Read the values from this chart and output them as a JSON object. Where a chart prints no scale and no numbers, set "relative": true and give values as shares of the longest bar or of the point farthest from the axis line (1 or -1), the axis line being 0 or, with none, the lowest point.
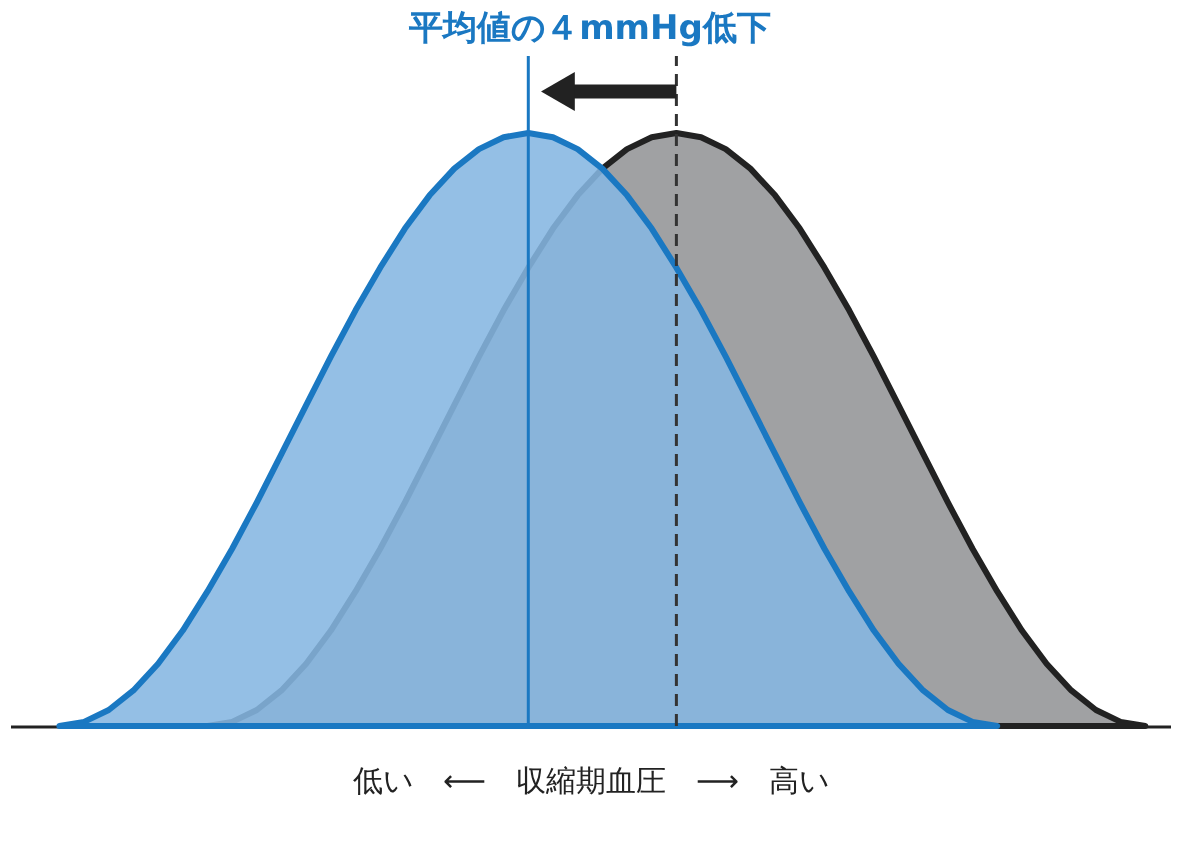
{
  "chart_data": {
    "type": "area",
    "relative": true,
    "title": "平均値の４mmHg低下",
    "xlabel": "低い　⟵　収縮期血圧　⟶　高い",
    "grid": false,
    "categories": [
      null,
      null,
      null,
      null,
      null,
      null,
      null,
      null,
      null,
      null,
      null,
      null,
      null,
      null,
      null,
      null,
      null,
      null,
      null,
      null,
      null,
      null,
      null,
      null,
      null,
      null,
      null,
      null,
      null,
      null,
      null,
      null,
      null,
      null,
      null,
      null,
      null,
      null,
      null,
      null,
      null,
      null,
      null,
      null,
      null,
      null,
      null,
      null
    ],
    "series": [
      {
        "color": "#a0a1a3",
        "values": [
          null,
          null,
          null,
          null,
          null,
          null,
          null,
          null,
          0,
          0.007,
          0.027,
          0.06,
          0.105,
          0.161,
          0.227,
          0.299,
          0.377,
          0.459,
          0.541,
          0.623,
          0.701,
          0.773,
          0.839,
          0.895,
          0.94,
          0.973,
          0.993,
          1,
          0.993,
          0.973,
          0.94,
          0.895,
          0.839,
          0.773,
          0.701,
          0.623,
          0.541,
          0.459,
          0.377,
          0.299,
          0.227,
          0.161,
          0.105,
          0.06,
          0.027,
          0.007,
          0,
          null
        ]
      },
      {
        "color": "#85b6e1",
        "values": [
          null,
          null,
          0,
          0.007,
          0.027,
          0.06,
          0.105,
          0.161,
          0.227,
          0.299,
          0.377,
          0.459,
          0.541,
          0.623,
          0.701,
          0.773,
          0.839,
          0.895,
          0.94,
          0.973,
          0.993,
          1,
          0.993,
          0.973,
          0.94,
          0.895,
          0.839,
          0.773,
          0.701,
          0.623,
          0.541,
          0.459,
          0.377,
          0.299,
          0.227,
          0.161,
          0.105,
          0.06,
          0.027,
          0.007,
          0,
          null,
          null,
          null,
          null,
          null,
          null,
          null
        ]
      }
    ]
  }
}
